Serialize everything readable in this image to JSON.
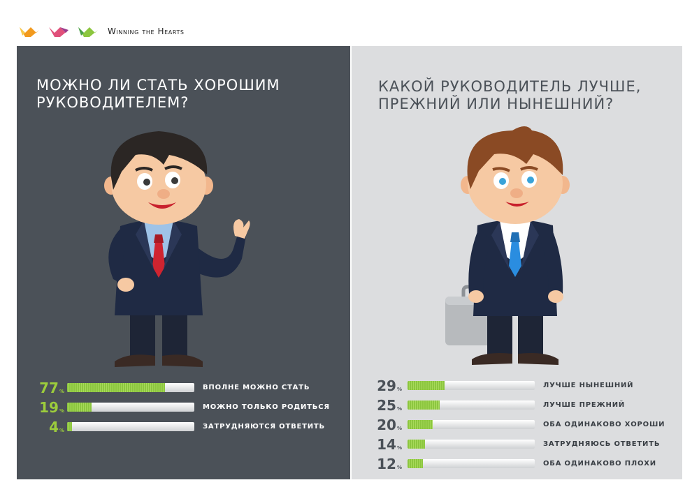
{
  "brand": {
    "name": "Winning the Hearts",
    "colors": [
      "#f29a1e",
      "#e0507a",
      "#8cc63f"
    ]
  },
  "left": {
    "title": "Можно ли стать хорошим\nруководителем?",
    "background": "#4b5158",
    "items": [
      {
        "value": 77,
        "label": "вполне можно стать"
      },
      {
        "value": 19,
        "label": "можно только родиться"
      },
      {
        "value": 4,
        "label": "затрудняются ответить"
      }
    ]
  },
  "right": {
    "title": "Какой руководитель лучше,\nпрежний или нынешний?",
    "background": "#dcdddf",
    "items": [
      {
        "value": 29,
        "label": "лучше нынешний"
      },
      {
        "value": 25,
        "label": "лучше прежний"
      },
      {
        "value": 20,
        "label": "оба одинаково хороши"
      },
      {
        "value": 14,
        "label": "затрудняюсь ответить"
      },
      {
        "value": 12,
        "label": "оба одинаково плохи"
      }
    ]
  },
  "accent": "#8cc63f"
}
